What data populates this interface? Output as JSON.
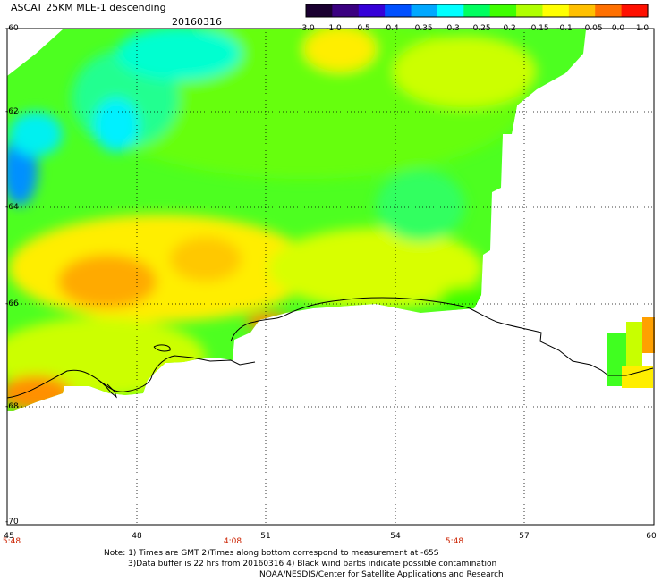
{
  "header": {
    "title": "ASCAT 25KM MLE-1 descending",
    "date": "20160316"
  },
  "colorbar": {
    "labels": [
      "-3.0",
      "-1.0",
      "-0.5",
      "-0.4",
      "-0.35",
      "-0.3",
      "-0.25",
      "-0.2",
      "-0.15",
      "-0.1",
      "-0.05",
      "0.0",
      "1.0"
    ],
    "colors": [
      "#1a0030",
      "#3a0080",
      "#3500d8",
      "#0050ff",
      "#00a8ff",
      "#00ffff",
      "#00ff60",
      "#40ff00",
      "#b0ff00",
      "#ffff00",
      "#ffc000",
      "#ff7000",
      "#ff1000"
    ]
  },
  "axes": {
    "lat_ticks": [
      "-60",
      "-62",
      "-64",
      "-66",
      "-68",
      "-70"
    ],
    "lon_ticks": [
      "45",
      "48",
      "51",
      "54",
      "57",
      "60"
    ],
    "time_labels": [
      "5:48",
      "4:08",
      "5:48"
    ]
  },
  "notes": {
    "line1": "Note: 1) Times are GMT 2)Times along bottom correspond to measurement at -65S",
    "line2": "3)Data buffer is 22 hrs from 20160316 4) Black wind barbs indicate possible contamination",
    "line3": "NOAA/NESDIS/Center for Satellite Applications and Research"
  }
}
